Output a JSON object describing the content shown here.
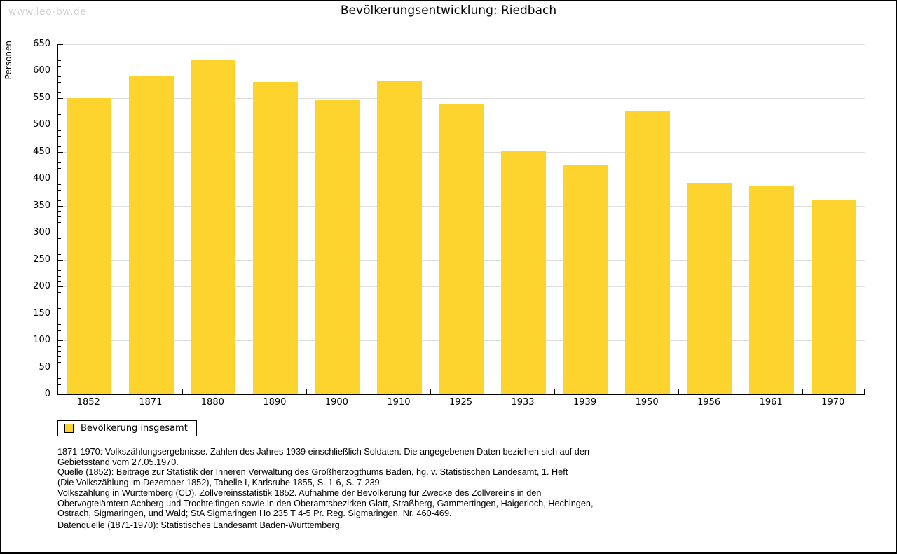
{
  "watermark": "www.leo-bw.de",
  "chart_data": {
    "type": "bar",
    "title": "Bevölkerungsentwicklung: Riedbach",
    "xlabel": "",
    "ylabel": "Personen",
    "categories": [
      "1852",
      "1871",
      "1880",
      "1890",
      "1900",
      "1910",
      "1925",
      "1933",
      "1939",
      "1950",
      "1956",
      "1961",
      "1970"
    ],
    "values": [
      550,
      591,
      620,
      580,
      546,
      583,
      539,
      452,
      426,
      526,
      392,
      387,
      361
    ],
    "ylim": [
      0,
      650
    ],
    "ytick_step": 50,
    "y_minor_step": 10,
    "grid": true,
    "bar_color": "#FDD32E",
    "gridline_color": "#DDDDDD",
    "axis_color": "#000000",
    "legend": {
      "label": "Bevölkerung insgesamt",
      "position": "bottom-left"
    }
  },
  "footnotes": {
    "lines": [
      "1871-1970: Volkszählungsergebnisse. Zahlen des Jahres 1939 einschließlich Soldaten. Die angegebenen Daten beziehen sich auf den",
      "Gebietsstand vom 27.05.1970.",
      "Quelle (1852): Beiträge zur Statistik der Inneren Verwaltung des Großherzogthums Baden, hg. v. Statistischen Landesamt, 1. Heft",
      "(Die Volkszählung im Dezember 1852), Tabelle I, Karlsruhe 1855, S. 1-6, S. 7-239;",
      "Volkszählung in Württemberg (CD), Zollvereinsstatistik 1852. Aufnahme der Bevölkerung für Zwecke des Zollvereins in den",
      "Obervogteiämtern Achberg und Trochtelfingen sowie in den Oberamtsbezirken Glatt, Straßberg, Gammertingen, Haigerloch, Hechingen,",
      "Ostrach, Sigmaringen, und Wald; StA Sigmaringen Ho 235 T 4-5 Pr. Reg. Sigmaringen, Nr. 460-469."
    ],
    "datasource": "Datenquelle (1871-1970): Statistisches Landesamt Baden-Württemberg."
  }
}
